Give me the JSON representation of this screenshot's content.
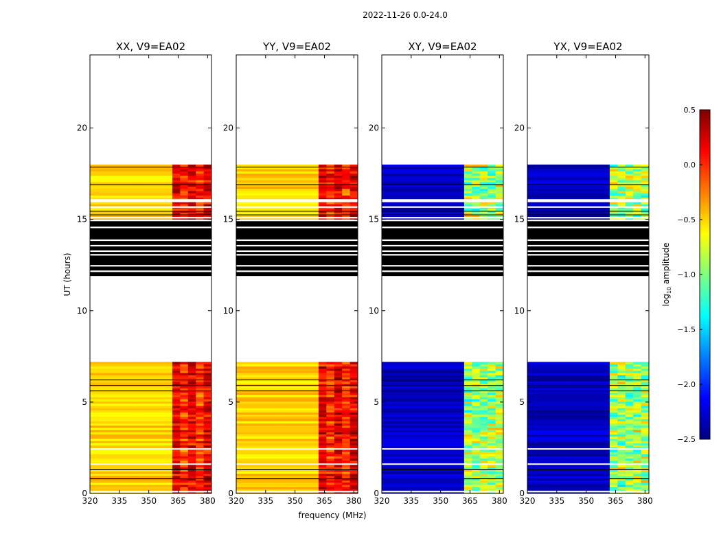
{
  "figure_title": "2022-11-26 0.0-24.0",
  "chart_data": {
    "type": "heatmap",
    "title": "2022-11-26 0.0-24.0",
    "xlabel": "frequency (MHz)",
    "ylabel": "UT (hours)",
    "xlim": [
      320,
      382
    ],
    "ylim": [
      0,
      24
    ],
    "x_ticks": [
      "320",
      "335",
      "350",
      "365",
      "380"
    ],
    "y_ticks": [
      "0",
      "5",
      "10",
      "15",
      "20"
    ],
    "panels": [
      {
        "title": "XX, V9=EA02",
        "pol": "XX"
      },
      {
        "title": "YY, V9=EA02",
        "pol": "YY"
      },
      {
        "title": "XY, V9=EA02",
        "pol": "XY"
      },
      {
        "title": "YX, V9=EA02",
        "pol": "YX"
      }
    ],
    "colorbar": {
      "label": "log10 amplitude",
      "label_main": "log",
      "label_sub": "10",
      "label_rest": " amplitude",
      "vmin": -2.5,
      "vmax": 0.5,
      "ticks": [
        "0.5",
        "0.0",
        "−0.5",
        "−1.0",
        "−1.5",
        "−2.0",
        "−2.5"
      ],
      "colormap": "jet"
    },
    "observed_ut_ranges": [
      [
        0,
        7.2
      ],
      [
        15.0,
        18.0
      ]
    ],
    "flagged_ut_range": [
      11.9,
      14.9
    ],
    "empty_ut_ranges": [
      [
        7.2,
        11.9
      ],
      [
        18.0,
        24
      ]
    ],
    "approx_amplitude": {
      "parallel_hands": {
        "low_band_320_362": -0.5,
        "high_band_362_382": 0.0
      },
      "cross_hands": {
        "low_band_320_362": -2.3,
        "high_band_362_382": -0.9
      }
    }
  },
  "colors": {
    "jet": [
      "#00007f",
      "#0000ff",
      "#007fff",
      "#00ffff",
      "#7fff7f",
      "#ffff00",
      "#ff7f00",
      "#ff0000",
      "#7f0000"
    ],
    "flagged": "#000000",
    "background": "#ffffff"
  }
}
